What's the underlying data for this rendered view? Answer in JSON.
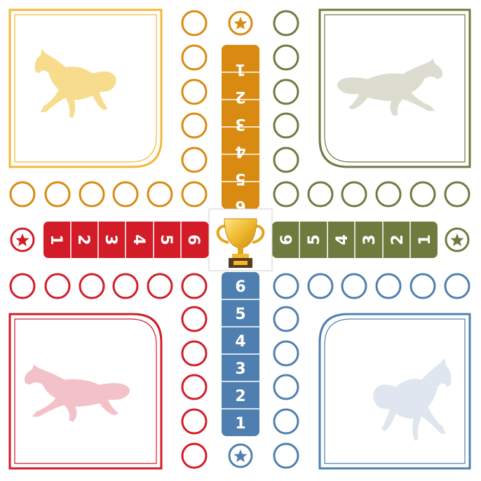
{
  "colors": {
    "yellow": "#d98a10",
    "yellow_light": "#f1b93a",
    "yellow_horse": "#f8dc8e",
    "green": "#6f7a3e",
    "green_horse": "#dcdcd0",
    "red": "#d21c27",
    "red_horse": "#f3c2c8",
    "blue": "#4f7fb0",
    "blue_horse": "#e0e6ef"
  },
  "center": {
    "icon": "trophy-icon"
  },
  "home_lanes": {
    "yellow": [
      "1",
      "2",
      "3",
      "4",
      "5",
      "6"
    ],
    "red": [
      "1",
      "2",
      "3",
      "4",
      "5",
      "6"
    ],
    "green": [
      "6",
      "5",
      "4",
      "3",
      "2",
      "1"
    ],
    "blue": [
      "6",
      "5",
      "4",
      "3",
      "2",
      "1"
    ]
  },
  "start_markers": {
    "yellow": "star-icon",
    "red": "star-icon",
    "green": "star-icon",
    "blue": "star-icon"
  }
}
